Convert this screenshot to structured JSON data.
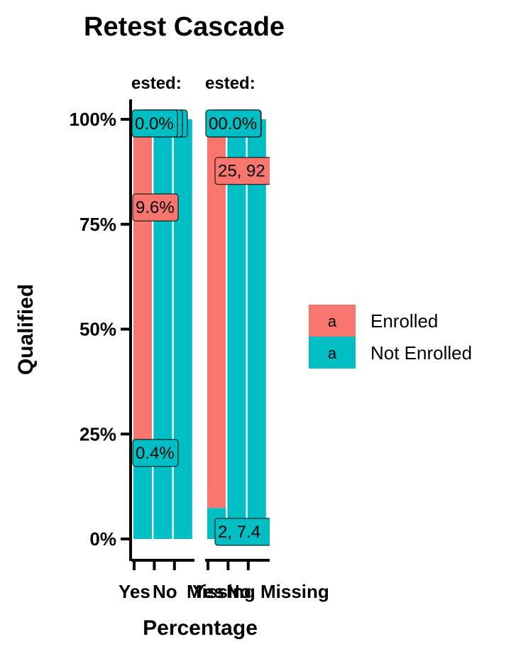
{
  "chart_data": {
    "type": "bar",
    "stacked": true,
    "position": "fill",
    "title": "Retest Cascade",
    "xlabel": "Percentage",
    "ylabel": "Qualified",
    "y_ticks": [
      "0%",
      "25%",
      "50%",
      "75%",
      "100%"
    ],
    "ylim": [
      0,
      1
    ],
    "facet_strip_labels": [
      "ested:",
      "ested:"
    ],
    "categories": [
      "Yes",
      "No",
      "Missing"
    ],
    "panels": [
      {
        "strip": "ested:",
        "bars": [
          {
            "category": "Yes",
            "segments": [
              {
                "series": "Not Enrolled",
                "value": 0.236
              },
              {
                "series": "Enrolled",
                "value": 0.764
              }
            ]
          },
          {
            "category": "No",
            "segments": [
              {
                "series": "Not Enrolled",
                "value": 1.0
              }
            ]
          },
          {
            "category": "Missing",
            "segments": [
              {
                "series": "Not Enrolled",
                "value": 1.0
              }
            ]
          }
        ],
        "labels": [
          {
            "text": "0.0%",
            "series": "Not Enrolled",
            "bar": 0,
            "y": 0.99
          },
          {
            "text": "0.0%",
            "series": "Not Enrolled",
            "bar": 1,
            "y": 0.99
          },
          {
            "text": "0.0%",
            "series": "Not Enrolled",
            "bar": 2,
            "y": 0.99
          },
          {
            "text": "9.6%",
            "series": "Enrolled",
            "bar": 0,
            "y": 0.79
          },
          {
            "text": "0.4%",
            "series": "Not Enrolled",
            "bar": 0,
            "y": 0.205
          }
        ]
      },
      {
        "strip": "ested:",
        "bars": [
          {
            "category": "Yes",
            "segments": [
              {
                "series": "Not Enrolled",
                "value": 0.074
              },
              {
                "series": "Enrolled",
                "value": 0.926
              }
            ]
          },
          {
            "category": "No",
            "segments": [
              {
                "series": "Not Enrolled",
                "value": 1.0
              }
            ]
          },
          {
            "category": "Missing",
            "segments": [
              {
                "series": "Not Enrolled",
                "value": 1.0
              }
            ]
          }
        ],
        "labels": [
          {
            "text": "00.0%",
            "series": "Not Enrolled",
            "bar": 0,
            "y": 0.99
          },
          {
            "text": "0.0%",
            "series": "Not Enrolled",
            "bar": 1,
            "y": 0.99
          },
          {
            "text": "0.0%",
            "series": "Not Enrolled",
            "bar": 2,
            "y": 0.99
          },
          {
            "text": "25, 92",
            "series": "Enrolled",
            "bar": 0,
            "y": 0.877
          },
          {
            "text": "2, 7.4",
            "series": "Not Enrolled",
            "bar": 0,
            "y": 0.017
          }
        ]
      }
    ],
    "series": [
      {
        "name": "Enrolled",
        "color": "#F8766D"
      },
      {
        "name": "Not Enrolled",
        "color": "#00BFC4"
      }
    ],
    "legend": {
      "position": "right",
      "key_glyph": "a",
      "entries": [
        "Enrolled",
        "Not Enrolled"
      ]
    }
  }
}
